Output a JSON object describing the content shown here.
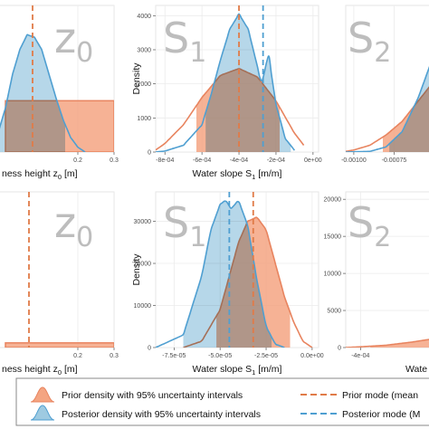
{
  "colors": {
    "prior_fill": "#f4a582",
    "prior_line": "#e8845f",
    "posterior_fill": "#9ecae1",
    "posterior_line": "#4f9fd1",
    "overlap": "#b3a7b0",
    "prior_mode": "#e07b48",
    "posterior_mode": "#4f9fd1"
  },
  "chart_data": [
    {
      "id": "top-left",
      "type": "area",
      "watermark": "z",
      "watermark_sub": "0",
      "xlabel_main": "ness height z",
      "xlabel_sub": "0",
      "xlabel_tail": " [m]",
      "ylabel": "",
      "xlim": [
        -0.02,
        0.3
      ],
      "ylim": [
        0,
        30
      ],
      "xticks": [
        {
          "v": 0.2,
          "label": "0.2"
        },
        {
          "v": 0.3,
          "label": "0.3"
        }
      ],
      "yticks": [],
      "prior": {
        "shape": "uniform",
        "range": [
          0.0,
          0.3
        ],
        "height": 10.5
      },
      "posterior": {
        "x": [
          -0.02,
          0.0,
          0.02,
          0.04,
          0.06,
          0.08,
          0.1,
          0.12,
          0.14,
          0.16,
          0.18,
          0.2,
          0.22
        ],
        "y": [
          4,
          9,
          16,
          21,
          24,
          23.5,
          21,
          16,
          11,
          6.5,
          3,
          1,
          0
        ]
      },
      "posterior_ci": [
        -0.02,
        0.165
      ],
      "prior_mode": 0.075,
      "posterior_mode": null
    },
    {
      "id": "top-mid",
      "type": "area",
      "watermark": "S",
      "watermark_sub": "1",
      "xlabel_main": "Water slope S",
      "xlabel_sub": "1",
      "xlabel_tail": " [m/m]",
      "ylabel": "Density",
      "xlim": [
        -0.00085,
        3e-05
      ],
      "ylim": [
        0,
        4300
      ],
      "xticks": [
        {
          "v": -0.0008,
          "label": "-8e-04"
        },
        {
          "v": -0.0006,
          "label": "-6e-04"
        },
        {
          "v": -0.0004,
          "label": "-4e-04"
        },
        {
          "v": -0.0002,
          "label": "-2e-04"
        },
        {
          "v": 0.0,
          "label": "0e+00"
        }
      ],
      "yticks": [
        {
          "v": 0,
          "label": "0"
        },
        {
          "v": 1000,
          "label": "1000"
        },
        {
          "v": 2000,
          "label": "2000"
        },
        {
          "v": 3000,
          "label": "3000"
        },
        {
          "v": 4000,
          "label": "4000"
        }
      ],
      "prior": {
        "x": [
          -0.00085,
          -0.0008,
          -0.0007,
          -0.0006,
          -0.0005,
          -0.0004,
          -0.0003,
          -0.0002,
          -0.0001,
          -5e-05
        ],
        "y": [
          60,
          250,
          800,
          1600,
          2250,
          2450,
          2200,
          1500,
          550,
          200
        ]
      },
      "prior_ci": [
        -0.00063,
        -0.00018
      ],
      "posterior": {
        "x": [
          -0.00085,
          -0.0008,
          -0.0007,
          -0.0006,
          -0.00055,
          -0.0005,
          -0.00045,
          -0.0004,
          -0.00035,
          -0.0003,
          -0.00028,
          -0.00026,
          -0.00024,
          -0.00022,
          -0.0002,
          -0.00015,
          -0.0001
        ],
        "y": [
          0,
          30,
          200,
          800,
          1700,
          2700,
          3600,
          4050,
          3600,
          2500,
          2000,
          2400,
          2900,
          2100,
          1400,
          400,
          50
        ]
      },
      "posterior_ci": [
        -0.00058,
        -0.00012
      ],
      "prior_mode": -0.0004,
      "posterior_mode": -0.00027
    },
    {
      "id": "top-right",
      "type": "area",
      "watermark": "S",
      "watermark_sub": "2",
      "xlabel_main": "",
      "xlabel_sub": "",
      "xlabel_tail": "",
      "ylabel": "",
      "xlim": [
        -0.00105,
        -0.0005
      ],
      "ylim": [
        0,
        4300
      ],
      "xticks": [
        {
          "v": -0.001,
          "label": "-0.00100"
        },
        {
          "v": -0.00075,
          "label": "-0.00075"
        }
      ],
      "yticks": [],
      "prior": {
        "x": [
          -0.00105,
          -0.001,
          -0.0009,
          -0.0008,
          -0.0007,
          -0.0006,
          -0.0005
        ],
        "y": [
          20,
          60,
          200,
          500,
          900,
          1500,
          2100
        ]
      },
      "prior_ci": [
        -0.00082,
        -0.0005
      ],
      "posterior": {
        "x": [
          -0.00105,
          -0.0009,
          -0.0008,
          -0.0007,
          -0.0006,
          -0.0005
        ],
        "y": [
          0,
          20,
          150,
          600,
          1600,
          2900
        ]
      },
      "posterior_ci": [
        -0.00078,
        -0.0005
      ],
      "prior_mode": null,
      "posterior_mode": null
    },
    {
      "id": "bottom-left",
      "type": "area",
      "watermark": "z",
      "watermark_sub": "0",
      "xlabel_main": "ness height z",
      "xlabel_sub": "0",
      "xlabel_tail": " [m]",
      "ylabel": "",
      "xlim": [
        -0.02,
        0.3
      ],
      "ylim": [
        0,
        30
      ],
      "xticks": [
        {
          "v": 0.2,
          "label": "0.2"
        },
        {
          "v": 0.3,
          "label": "0.3"
        }
      ],
      "yticks": [],
      "prior": {
        "shape": "uniform",
        "range": [
          0.0,
          0.3
        ],
        "height": 0.9
      },
      "posterior": null,
      "prior_mode": 0.065,
      "posterior_mode": null
    },
    {
      "id": "bottom-mid",
      "type": "area",
      "watermark": "S",
      "watermark_sub": "1",
      "xlabel_main": "Water slope S",
      "xlabel_sub": "1",
      "xlabel_tail": " [m/m]",
      "ylabel": "Density",
      "xlim": [
        -8.5e-05,
        3.5e-06
      ],
      "ylim": [
        0,
        37000
      ],
      "xticks": [
        {
          "v": -7.5e-05,
          "label": "-7.5e-05"
        },
        {
          "v": -5e-05,
          "label": "-5.0e-05"
        },
        {
          "v": -2.5e-05,
          "label": "-2.5e-05"
        },
        {
          "v": 0.0,
          "label": "0.0e+00"
        }
      ],
      "yticks": [
        {
          "v": 0,
          "label": "0"
        },
        {
          "v": 10000,
          "label": "10000"
        },
        {
          "v": 20000,
          "label": "20000"
        },
        {
          "v": 30000,
          "label": "30000"
        }
      ],
      "prior": {
        "x": [
          -7e-05,
          -6e-05,
          -5e-05,
          -4.5e-05,
          -4e-05,
          -3.5e-05,
          -3e-05,
          -2.5e-05,
          -2e-05,
          -1.5e-05,
          -1e-05,
          -5e-06,
          0.0
        ],
        "y": [
          0,
          1500,
          9000,
          17000,
          25000,
          30000,
          31000,
          28000,
          20000,
          12000,
          6000,
          1500,
          0
        ]
      },
      "prior_ci": [
        -5.2e-05,
        -1.2e-05
      ],
      "posterior": {
        "x": [
          -8.5e-05,
          -7e-05,
          -6e-05,
          -5.5e-05,
          -5e-05,
          -4.7e-05,
          -4.4e-05,
          -4e-05,
          -3.5e-05,
          -3e-05,
          -2.5e-05,
          -2e-05,
          -1.5e-05
        ],
        "y": [
          0,
          3000,
          17000,
          28000,
          34000,
          35000,
          33000,
          35000,
          29000,
          16000,
          5000,
          800,
          0
        ]
      },
      "posterior_ci": [
        -7e-05,
        -2.2e-05
      ],
      "prior_mode": -3.2e-05,
      "posterior_mode": -4.5e-05
    },
    {
      "id": "bottom-right",
      "type": "area",
      "watermark": "S",
      "watermark_sub": "2",
      "xlabel_main": "Wate",
      "xlabel_sub": "",
      "xlabel_tail": "",
      "ylabel": "",
      "xlim": [
        -0.00043,
        -0.00025
      ],
      "ylim": [
        0,
        21000
      ],
      "xticks": [
        {
          "v": -0.0004,
          "label": "-4e-04"
        }
      ],
      "yticks": [
        {
          "v": 0,
          "label": "0"
        },
        {
          "v": 5000,
          "label": "5000"
        },
        {
          "v": 10000,
          "label": "10000"
        },
        {
          "v": 15000,
          "label": "15000"
        },
        {
          "v": 20000,
          "label": "20000"
        }
      ],
      "prior": {
        "x": [
          -0.00043,
          -0.0004,
          -0.00035,
          -0.0003,
          -0.00025
        ],
        "y": [
          0,
          100,
          300,
          700,
          1200
        ]
      },
      "prior_ci": [
        -0.00038,
        -0.00025
      ],
      "posterior": null,
      "prior_mode": null,
      "posterior_mode": null
    }
  ],
  "legend": {
    "prior_density": "Prior density with 95% uncertainty intervals",
    "posterior_density": "Posterior density with 95% uncertainty intervals",
    "prior_mode": "Prior mode (mean",
    "posterior_mode": "Posterior mode (M"
  }
}
